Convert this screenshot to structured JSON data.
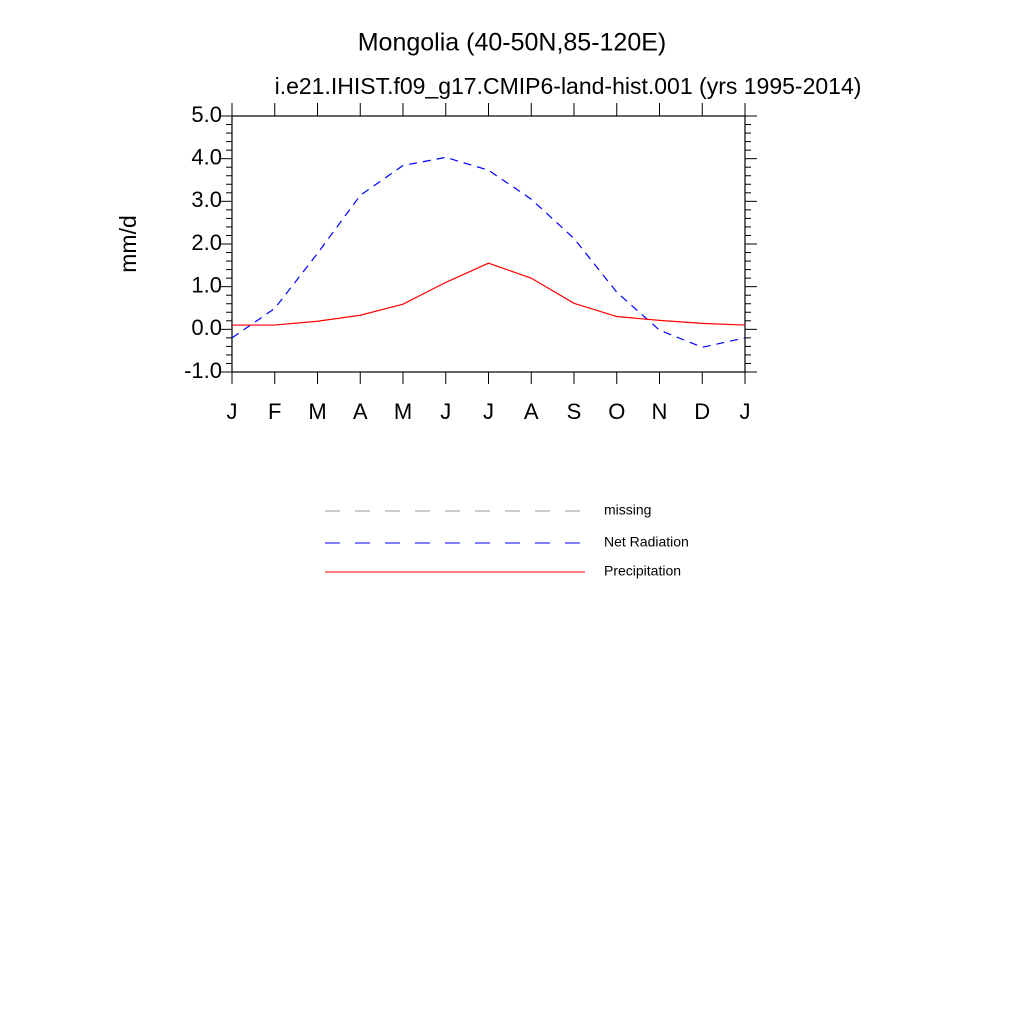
{
  "chart_data": {
    "type": "line",
    "title": "Mongolia (40-50N,85-120E)",
    "subtitle": "i.e21.IHIST.f09_g17.CMIP6-land-hist.001 (yrs 1995-2014)",
    "y_label": "mm/d",
    "categories": [
      "J",
      "F",
      "M",
      "A",
      "M",
      "J",
      "J",
      "A",
      "S",
      "O",
      "N",
      "D",
      "J"
    ],
    "series": [
      {
        "name": "missing",
        "color": "#999999",
        "dash": true,
        "values": [
          null,
          null,
          null,
          null,
          null,
          null,
          null,
          null,
          null,
          null,
          null,
          null,
          null
        ]
      },
      {
        "name": "Net Radiation",
        "color": "#0000ff",
        "dash": true,
        "values": [
          -0.2,
          0.49,
          1.78,
          3.14,
          3.84,
          4.03,
          3.73,
          3.05,
          2.13,
          0.87,
          -0.02,
          -0.42,
          -0.2
        ]
      },
      {
        "name": "Precipitation",
        "color": "#ff0000",
        "dash": false,
        "values": [
          0.1,
          0.1,
          0.19,
          0.33,
          0.59,
          1.1,
          1.55,
          1.2,
          0.61,
          0.3,
          0.21,
          0.14,
          0.1
        ]
      }
    ],
    "ylim": [
      -1,
      5
    ],
    "yticks": [
      {
        "value": -1,
        "label": "-1.0"
      },
      {
        "value": 0,
        "label": "0.0"
      },
      {
        "value": 1,
        "label": "1.0"
      },
      {
        "value": 2,
        "label": "2.0"
      },
      {
        "value": 3,
        "label": "3.0"
      },
      {
        "value": 4,
        "label": "4.0"
      },
      {
        "value": 5,
        "label": "5.0"
      }
    ]
  }
}
